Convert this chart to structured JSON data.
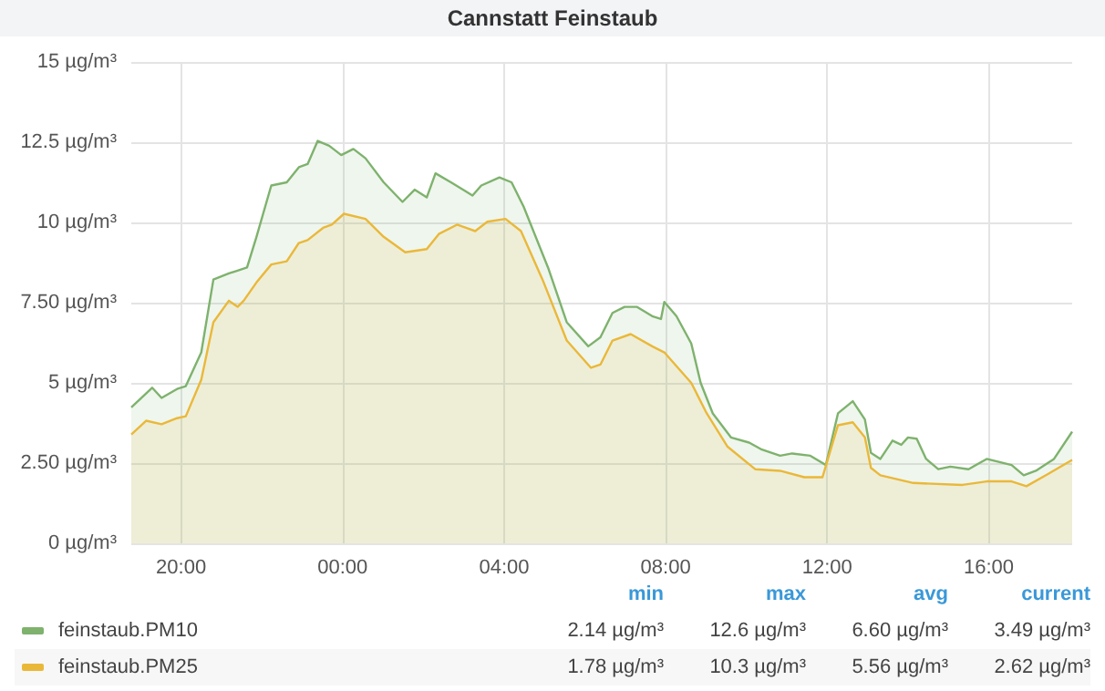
{
  "chart_data": {
    "type": "area",
    "title": "Cannstatt Feinstaub",
    "grid": true,
    "legend": "bottom",
    "marker": "none",
    "line_style": "solid",
    "xlim": [
      "2000-01-01T18:46",
      "2000-01-02T18:04"
    ],
    "xticks": [
      {
        "value": "2000-01-01T20:00",
        "label": "20:00"
      },
      {
        "value": "2000-01-02T00:00",
        "label": "00:00"
      },
      {
        "value": "2000-01-02T04:00",
        "label": "04:00"
      },
      {
        "value": "2000-01-02T08:00",
        "label": "08:00"
      },
      {
        "value": "2000-01-02T12:00",
        "label": "12:00"
      },
      {
        "value": "2000-01-02T16:00",
        "label": "16:00"
      }
    ],
    "ylim": [
      0,
      15
    ],
    "yticks": [
      {
        "value": 0,
        "label": "0 µg/m³"
      },
      {
        "value": 2.5,
        "label": "2.50 µg/m³"
      },
      {
        "value": 5,
        "label": "5 µg/m³"
      },
      {
        "value": 7.5,
        "label": "7.50 µg/m³"
      },
      {
        "value": 10,
        "label": "10 µg/m³"
      },
      {
        "value": 12.5,
        "label": "12.5 µg/m³"
      },
      {
        "value": 15,
        "label": "15 µg/m³"
      }
    ],
    "series": [
      {
        "name": "feinstaub.PM10",
        "color": "#7eb26d",
        "x": [
          "2000-01-01T18:46",
          "2000-01-01T19:17",
          "2000-01-01T19:31",
          "2000-01-01T19:54",
          "2000-01-01T20:07",
          "2000-01-01T20:30",
          "2000-01-01T20:48",
          "2000-01-01T21:11",
          "2000-01-01T21:24",
          "2000-01-01T21:38",
          "2000-01-01T21:52",
          "2000-01-01T22:14",
          "2000-01-01T22:37",
          "2000-01-01T22:55",
          "2000-01-01T23:08",
          "2000-01-01T23:23",
          "2000-01-01T23:40",
          "2000-01-01T23:58",
          "2000-01-02T00:16",
          "2000-01-02T00:34",
          "2000-01-02T01:01",
          "2000-01-02T01:29",
          "2000-01-02T01:47",
          "2000-01-02T02:05",
          "2000-01-02T02:18",
          "2000-01-02T02:41",
          "2000-01-02T03:13",
          "2000-01-02T03:26",
          "2000-01-02T03:53",
          "2000-01-02T04:11",
          "2000-01-02T04:29",
          "2000-01-02T05:06",
          "2000-01-02T05:33",
          "2000-01-02T06:05",
          "2000-01-02T06:23",
          "2000-01-02T06:41",
          "2000-01-02T06:59",
          "2000-01-02T07:17",
          "2000-01-02T07:40",
          "2000-01-02T07:53",
          "2000-01-02T07:58",
          "2000-01-02T08:16",
          "2000-01-02T08:38",
          "2000-01-02T08:52",
          "2000-01-02T09:10",
          "2000-01-02T09:37",
          "2000-01-02T10:04",
          "2000-01-02T10:23",
          "2000-01-02T10:50",
          "2000-01-02T11:08",
          "2000-01-02T11:35",
          "2000-01-02T11:58",
          "2000-01-02T12:16",
          "2000-01-02T12:38",
          "2000-01-02T12:56",
          "2000-01-02T13:05",
          "2000-01-02T13:19",
          "2000-01-02T13:37",
          "2000-01-02T13:50",
          "2000-01-02T14:00",
          "2000-01-02T14:13",
          "2000-01-02T14:27",
          "2000-01-02T14:45",
          "2000-01-02T15:03",
          "2000-01-02T15:30",
          "2000-01-02T15:57",
          "2000-01-02T16:34",
          "2000-01-02T16:52",
          "2000-01-02T17:10",
          "2000-01-02T17:37",
          "2000-01-02T18:04"
        ],
        "values": [
          4.24,
          4.85,
          4.53,
          4.81,
          4.9,
          5.95,
          8.22,
          8.41,
          8.5,
          8.6,
          9.55,
          11.15,
          11.25,
          11.72,
          11.82,
          12.54,
          12.39,
          12.1,
          12.29,
          12.0,
          11.25,
          10.64,
          11.02,
          10.78,
          11.53,
          11.25,
          10.84,
          11.15,
          11.4,
          11.25,
          10.49,
          8.55,
          6.89,
          6.14,
          6.42,
          7.18,
          7.37,
          7.37,
          7.08,
          6.99,
          7.52,
          7.08,
          6.23,
          5.0,
          4.05,
          3.3,
          3.14,
          2.92,
          2.73,
          2.8,
          2.73,
          2.44,
          4.05,
          4.43,
          3.86,
          2.82,
          2.63,
          3.2,
          3.07,
          3.3,
          3.26,
          2.63,
          2.31,
          2.39,
          2.31,
          2.63,
          2.44,
          2.12,
          2.26,
          2.63,
          3.48
        ]
      },
      {
        "name": "feinstaub.PM25",
        "color": "#eab839",
        "x": [
          "2000-01-01T18:46",
          "2000-01-01T19:08",
          "2000-01-01T19:31",
          "2000-01-01T19:54",
          "2000-01-01T20:07",
          "2000-01-01T20:30",
          "2000-01-01T20:48",
          "2000-01-01T21:11",
          "2000-01-01T21:24",
          "2000-01-01T21:33",
          "2000-01-01T21:52",
          "2000-01-01T22:14",
          "2000-01-01T22:37",
          "2000-01-01T22:55",
          "2000-01-01T23:08",
          "2000-01-01T23:31",
          "2000-01-01T23:44",
          "2000-01-02T00:02",
          "2000-01-02T00:34",
          "2000-01-02T01:01",
          "2000-01-02T01:33",
          "2000-01-02T02:05",
          "2000-01-02T02:23",
          "2000-01-02T02:50",
          "2000-01-02T03:17",
          "2000-01-02T03:35",
          "2000-01-02T04:02",
          "2000-01-02T04:25",
          "2000-01-02T04:57",
          "2000-01-02T05:33",
          "2000-01-02T06:09",
          "2000-01-02T06:23",
          "2000-01-02T06:41",
          "2000-01-02T07:08",
          "2000-01-02T07:40",
          "2000-01-02T07:58",
          "2000-01-02T08:38",
          "2000-01-02T09:01",
          "2000-01-02T09:32",
          "2000-01-02T10:13",
          "2000-01-02T10:50",
          "2000-01-02T11:26",
          "2000-01-02T11:53",
          "2000-01-02T12:16",
          "2000-01-02T12:38",
          "2000-01-02T12:56",
          "2000-01-02T13:05",
          "2000-01-02T13:19",
          "2000-01-02T14:08",
          "2000-01-02T15:21",
          "2000-01-02T15:57",
          "2000-01-02T16:34",
          "2000-01-02T16:56",
          "2000-01-02T17:28",
          "2000-01-02T18:04"
        ],
        "values": [
          3.39,
          3.82,
          3.71,
          3.9,
          3.96,
          5.1,
          6.89,
          7.56,
          7.37,
          7.56,
          8.13,
          8.69,
          8.79,
          9.36,
          9.45,
          9.83,
          9.93,
          10.27,
          10.11,
          9.55,
          9.07,
          9.17,
          9.64,
          9.93,
          9.73,
          10.02,
          10.11,
          9.73,
          8.22,
          6.32,
          5.47,
          5.57,
          6.32,
          6.52,
          6.14,
          5.95,
          5.0,
          4.05,
          3.01,
          2.31,
          2.26,
          2.06,
          2.06,
          3.68,
          3.77,
          3.3,
          2.35,
          2.12,
          1.88,
          1.82,
          1.93,
          1.93,
          1.78,
          2.16,
          2.6
        ]
      }
    ],
    "annotations": [
      "min",
      "max",
      "avg",
      "current",
      "2.14 µg/m³",
      "12.6 µg/m³",
      "6.60 µg/m³",
      "3.49 µg/m³",
      "1.78 µg/m³",
      "10.3 µg/m³",
      "5.56 µg/m³",
      "2.62 µg/m³"
    ]
  }
}
